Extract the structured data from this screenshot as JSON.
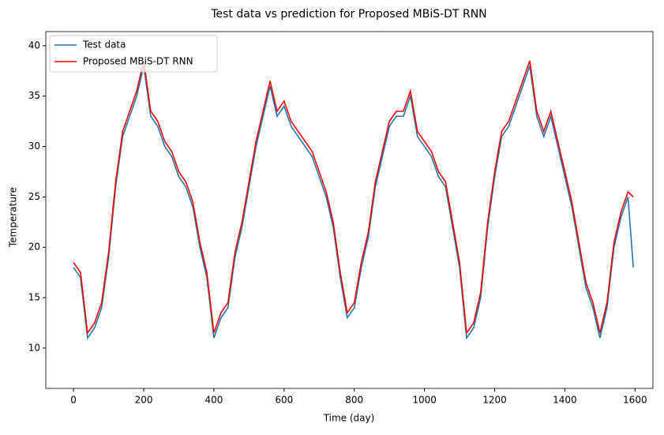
{
  "chart_data": {
    "type": "line",
    "title": "Test data vs prediction for Proposed MBiS-DT RNN",
    "x_label": "Time (day)",
    "y_label": "Temperature",
    "x": [
      0,
      20,
      40,
      60,
      80,
      100,
      120,
      140,
      160,
      180,
      200,
      220,
      240,
      260,
      280,
      300,
      320,
      340,
      360,
      380,
      400,
      420,
      440,
      460,
      480,
      500,
      520,
      540,
      560,
      580,
      600,
      620,
      640,
      660,
      680,
      700,
      720,
      740,
      760,
      780,
      800,
      820,
      840,
      860,
      880,
      900,
      920,
      940,
      960,
      980,
      1000,
      1020,
      1040,
      1060,
      1080,
      1100,
      1120,
      1140,
      1160,
      1180,
      1200,
      1220,
      1240,
      1260,
      1280,
      1300,
      1320,
      1340,
      1360,
      1380,
      1400,
      1420,
      1440,
      1460,
      1480,
      1500,
      1520,
      1540,
      1560,
      1580,
      1595
    ],
    "series": [
      {
        "name": "Test data",
        "color": "#1f77b4",
        "values": [
          18,
          17,
          11,
          12,
          14,
          19,
          26,
          31,
          33,
          35,
          38,
          33,
          32,
          30,
          29,
          27,
          26,
          24,
          20,
          17,
          11,
          13,
          14,
          19,
          22,
          26,
          30,
          33,
          36,
          33,
          34,
          32,
          31,
          30,
          29,
          27,
          25,
          22,
          17,
          13,
          14,
          18,
          21,
          26,
          29,
          32,
          33,
          33,
          35,
          31,
          30,
          29,
          27,
          26,
          22,
          18,
          11,
          12,
          15,
          22,
          27,
          31,
          32,
          34,
          36,
          38,
          33,
          31,
          33,
          30,
          27,
          24,
          20,
          16,
          14,
          11,
          14,
          20,
          23,
          25,
          18
        ]
      },
      {
        "name": "Proposed MBiS-DT RNN",
        "color": "#ff0000",
        "values": [
          18.5,
          17.5,
          11.5,
          12.5,
          14.5,
          19.5,
          26.5,
          31.5,
          33.5,
          35.5,
          38.5,
          33.5,
          32.5,
          30.5,
          29.5,
          27.5,
          26.5,
          24.5,
          20.5,
          17.5,
          11.5,
          13.5,
          14.5,
          19.5,
          22.5,
          26.5,
          30.5,
          33.5,
          36.5,
          33.5,
          34.5,
          32.5,
          31.5,
          30.5,
          29.5,
          27.5,
          25.5,
          22.5,
          17.5,
          13.5,
          14.5,
          18.5,
          21.5,
          26.5,
          29.5,
          32.5,
          33.5,
          33.5,
          35.5,
          31.5,
          30.5,
          29.5,
          27.5,
          26.5,
          22.5,
          18.5,
          11.5,
          12.5,
          15.5,
          22.5,
          27.5,
          31.5,
          32.5,
          34.5,
          36.5,
          38.5,
          33.5,
          31.5,
          33.5,
          30.5,
          27.5,
          24.5,
          20.5,
          16.5,
          14.5,
          11.5,
          14.5,
          20.5,
          23.5,
          25.5,
          25
        ]
      }
    ],
    "xlim": [
      -79,
      1651
    ],
    "ylim": [
      6.0,
      41.4
    ],
    "xticks": [
      0,
      200,
      400,
      600,
      800,
      1000,
      1200,
      1400,
      1600
    ],
    "yticks": [
      10,
      15,
      20,
      25,
      30,
      35,
      40
    ],
    "legend": "upper-left"
  }
}
